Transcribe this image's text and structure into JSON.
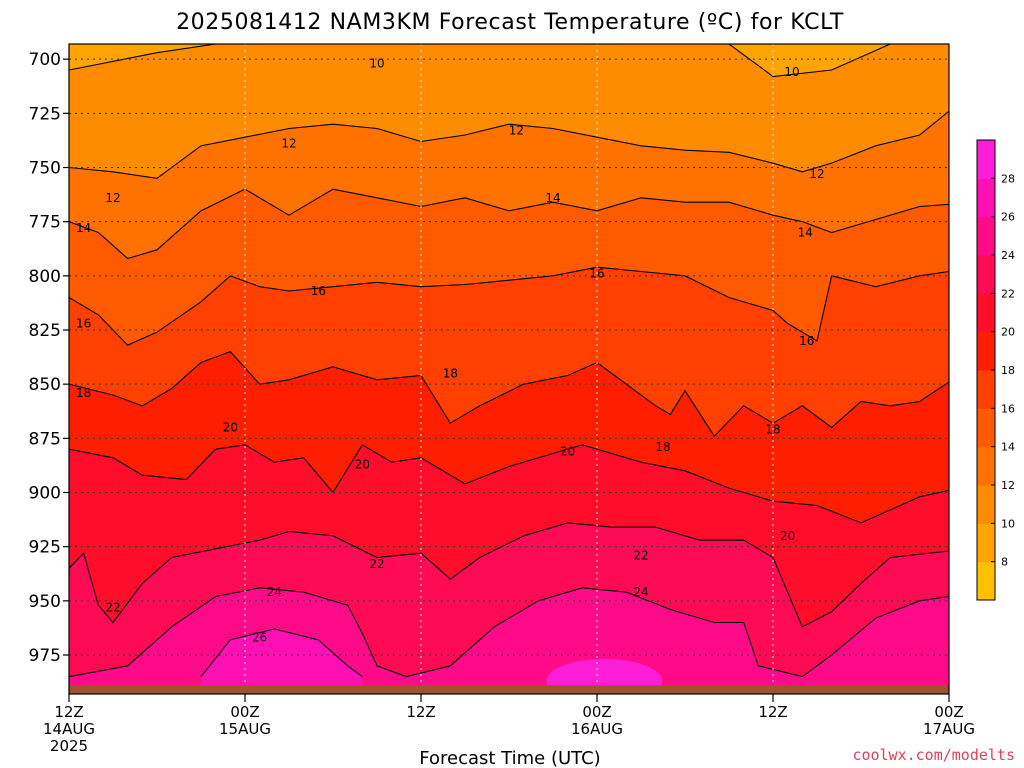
{
  "chart_data": {
    "type": "heatmap",
    "title": "2025081412 NAM3KM Forecast Temperature (ºC) for KCLT",
    "xlabel": "Forecast Time (UTC)",
    "credit": "coolwx.com/modelts",
    "x_ticks": [
      {
        "hour": 0,
        "line1": "12Z",
        "line2": "14AUG",
        "line3": "2025"
      },
      {
        "hour": 12,
        "line1": "00Z",
        "line2": "15AUG",
        "line3": ""
      },
      {
        "hour": 24,
        "line1": "12Z",
        "line2": "",
        "line3": ""
      },
      {
        "hour": 36,
        "line1": "00Z",
        "line2": "16AUG",
        "line3": ""
      },
      {
        "hour": 48,
        "line1": "12Z",
        "line2": "",
        "line3": ""
      },
      {
        "hour": 60,
        "line1": "00Z",
        "line2": "17AUG",
        "line3": ""
      }
    ],
    "xlim": [
      0,
      60
    ],
    "y_ticks": [
      700,
      725,
      750,
      775,
      800,
      825,
      850,
      875,
      900,
      925,
      950,
      975
    ],
    "ylim": [
      993,
      693
    ],
    "ground_level_hpa": 989,
    "colorbar_ticks": [
      8,
      10,
      12,
      14,
      16,
      18,
      20,
      22,
      24,
      26,
      28
    ],
    "colorbar_colors": [
      "#ffc000",
      "#ffa400",
      "#ff8c00",
      "#ff7200",
      "#ff5a00",
      "#ff4000",
      "#ff1f00",
      "#ff0d2a",
      "#ff0a55",
      "#ff0a88",
      "#ff10b4",
      "#ff1ed8"
    ],
    "grid": true,
    "contours": [
      {
        "level": 10,
        "series": [
          [
            0,
            705
          ],
          [
            6,
            697
          ],
          [
            10,
            693
          ],
          [
            40,
            693
          ],
          [
            45,
            693
          ],
          [
            48,
            708
          ],
          [
            52,
            705
          ],
          [
            56,
            693
          ],
          [
            60,
            693
          ]
        ]
      },
      {
        "level": 12,
        "series": [
          [
            0,
            750
          ],
          [
            3,
            752
          ],
          [
            6,
            755
          ],
          [
            9,
            740
          ],
          [
            12,
            736
          ],
          [
            15,
            732
          ],
          [
            18,
            730
          ],
          [
            21,
            732
          ],
          [
            24,
            738
          ],
          [
            27,
            735
          ],
          [
            30,
            730
          ],
          [
            33,
            732
          ],
          [
            36,
            736
          ],
          [
            39,
            740
          ],
          [
            42,
            742
          ],
          [
            45,
            743
          ],
          [
            48,
            748
          ],
          [
            50,
            752
          ],
          [
            52,
            748
          ],
          [
            55,
            740
          ],
          [
            58,
            735
          ],
          [
            60,
            724
          ]
        ]
      },
      {
        "level": 14,
        "series": [
          [
            0,
            775
          ],
          [
            2,
            780
          ],
          [
            4,
            792
          ],
          [
            6,
            788
          ],
          [
            9,
            770
          ],
          [
            12,
            760
          ],
          [
            15,
            772
          ],
          [
            18,
            760
          ],
          [
            21,
            764
          ],
          [
            24,
            768
          ],
          [
            27,
            764
          ],
          [
            30,
            770
          ],
          [
            33,
            766
          ],
          [
            36,
            770
          ],
          [
            39,
            764
          ],
          [
            42,
            766
          ],
          [
            45,
            766
          ],
          [
            48,
            772
          ],
          [
            50,
            775
          ],
          [
            52,
            780
          ],
          [
            55,
            774
          ],
          [
            58,
            768
          ],
          [
            60,
            767
          ]
        ]
      },
      {
        "level": 16,
        "series": [
          [
            0,
            810
          ],
          [
            2,
            818
          ],
          [
            4,
            832
          ],
          [
            6,
            826
          ],
          [
            9,
            812
          ],
          [
            11,
            800
          ],
          [
            13,
            805
          ],
          [
            15,
            807
          ],
          [
            18,
            805
          ],
          [
            21,
            803
          ],
          [
            24,
            805
          ],
          [
            27,
            804
          ],
          [
            30,
            802
          ],
          [
            33,
            800
          ],
          [
            36,
            796
          ],
          [
            39,
            798
          ],
          [
            42,
            800
          ],
          [
            45,
            810
          ],
          [
            48,
            816
          ],
          [
            49,
            822
          ],
          [
            51,
            830
          ],
          [
            52,
            800
          ],
          [
            55,
            805
          ],
          [
            58,
            800
          ],
          [
            60,
            798
          ]
        ]
      },
      {
        "level": 18,
        "series": [
          [
            0,
            850
          ],
          [
            3,
            855
          ],
          [
            5,
            860
          ],
          [
            7,
            852
          ],
          [
            9,
            840
          ],
          [
            11,
            835
          ],
          [
            13,
            850
          ],
          [
            15,
            848
          ],
          [
            18,
            842
          ],
          [
            21,
            848
          ],
          [
            24,
            846
          ],
          [
            26,
            868
          ],
          [
            28,
            860
          ],
          [
            31,
            850
          ],
          [
            34,
            846
          ],
          [
            36,
            840
          ],
          [
            38,
            850
          ],
          [
            40,
            860
          ],
          [
            41,
            864
          ],
          [
            42,
            853
          ],
          [
            44,
            874
          ],
          [
            46,
            860
          ],
          [
            48,
            868
          ],
          [
            50,
            860
          ],
          [
            52,
            870
          ],
          [
            54,
            858
          ],
          [
            56,
            860
          ],
          [
            58,
            858
          ],
          [
            60,
            849
          ]
        ]
      },
      {
        "level": 20,
        "series": [
          [
            0,
            880
          ],
          [
            3,
            884
          ],
          [
            5,
            892
          ],
          [
            8,
            894
          ],
          [
            10,
            880
          ],
          [
            12,
            878
          ],
          [
            14,
            886
          ],
          [
            16,
            884
          ],
          [
            18,
            900
          ],
          [
            20,
            878
          ],
          [
            22,
            886
          ],
          [
            24,
            884
          ],
          [
            27,
            896
          ],
          [
            30,
            888
          ],
          [
            33,
            882
          ],
          [
            35,
            878
          ],
          [
            37,
            882
          ],
          [
            39,
            886
          ],
          [
            42,
            890
          ],
          [
            45,
            898
          ],
          [
            48,
            904
          ],
          [
            51,
            906
          ],
          [
            54,
            914
          ],
          [
            56,
            908
          ],
          [
            58,
            902
          ],
          [
            60,
            899
          ]
        ]
      },
      {
        "level": 22,
        "series": [
          [
            0,
            935
          ],
          [
            1,
            928
          ],
          [
            2,
            952
          ],
          [
            3,
            960
          ],
          [
            5,
            942
          ],
          [
            7,
            930
          ],
          [
            10,
            926
          ],
          [
            13,
            922
          ],
          [
            15,
            918
          ],
          [
            18,
            920
          ],
          [
            21,
            930
          ],
          [
            24,
            928
          ],
          [
            26,
            940
          ],
          [
            28,
            930
          ],
          [
            31,
            920
          ],
          [
            34,
            914
          ],
          [
            37,
            916
          ],
          [
            40,
            916
          ],
          [
            43,
            922
          ],
          [
            46,
            922
          ],
          [
            48,
            930
          ],
          [
            50,
            962
          ],
          [
            52,
            955
          ],
          [
            54,
            942
          ],
          [
            56,
            930
          ],
          [
            60,
            927
          ]
        ]
      },
      {
        "level": 24,
        "series": [
          [
            0,
            985
          ],
          [
            4,
            980
          ],
          [
            7,
            962
          ],
          [
            10,
            948
          ],
          [
            13,
            944
          ],
          [
            16,
            946
          ],
          [
            19,
            952
          ],
          [
            20,
            965
          ],
          [
            21,
            980
          ],
          [
            23,
            985
          ],
          [
            26,
            980
          ],
          [
            29,
            962
          ],
          [
            32,
            950
          ],
          [
            35,
            944
          ],
          [
            38,
            946
          ],
          [
            41,
            954
          ],
          [
            44,
            960
          ],
          [
            46,
            960
          ],
          [
            47,
            980
          ],
          [
            50,
            985
          ],
          [
            52,
            975
          ],
          [
            55,
            958
          ],
          [
            58,
            950
          ],
          [
            60,
            948
          ]
        ]
      },
      {
        "level": 26,
        "series": [
          [
            9,
            985
          ],
          [
            11,
            968
          ],
          [
            14,
            963
          ],
          [
            17,
            968
          ],
          [
            19,
            980
          ],
          [
            20,
            985
          ]
        ]
      }
    ],
    "contour_labels": [
      {
        "level": 10,
        "x": 21,
        "p": 702
      },
      {
        "level": 10,
        "x": 49.3,
        "p": 706
      },
      {
        "level": 12,
        "x": 15,
        "p": 739
      },
      {
        "level": 12,
        "x": 30.5,
        "p": 733
      },
      {
        "level": 12,
        "x": 51,
        "p": 753
      },
      {
        "level": 12,
        "x": 3,
        "p": 764
      },
      {
        "level": 14,
        "x": 1,
        "p": 778
      },
      {
        "level": 14,
        "x": 33,
        "p": 764
      },
      {
        "level": 14,
        "x": 50.2,
        "p": 780
      },
      {
        "level": 16,
        "x": 1,
        "p": 822
      },
      {
        "level": 16,
        "x": 17,
        "p": 807
      },
      {
        "level": 16,
        "x": 36,
        "p": 799
      },
      {
        "level": 16,
        "x": 50.3,
        "p": 830
      },
      {
        "level": 18,
        "x": 1,
        "p": 854
      },
      {
        "level": 18,
        "x": 26,
        "p": 845
      },
      {
        "level": 18,
        "x": 40.5,
        "p": 879
      },
      {
        "level": 18,
        "x": 48,
        "p": 871
      },
      {
        "level": 20,
        "x": 11,
        "p": 870
      },
      {
        "level": 20,
        "x": 20,
        "p": 887
      },
      {
        "level": 20,
        "x": 34,
        "p": 881
      },
      {
        "level": 20,
        "x": 49,
        "p": 920
      },
      {
        "level": 22,
        "x": 21,
        "p": 933
      },
      {
        "level": 22,
        "x": 39,
        "p": 929
      },
      {
        "level": 22,
        "x": 3,
        "p": 953
      },
      {
        "level": 24,
        "x": 14,
        "p": 946
      },
      {
        "level": 24,
        "x": 39,
        "p": 946
      },
      {
        "level": 26,
        "x": 13,
        "p": 967
      }
    ]
  }
}
